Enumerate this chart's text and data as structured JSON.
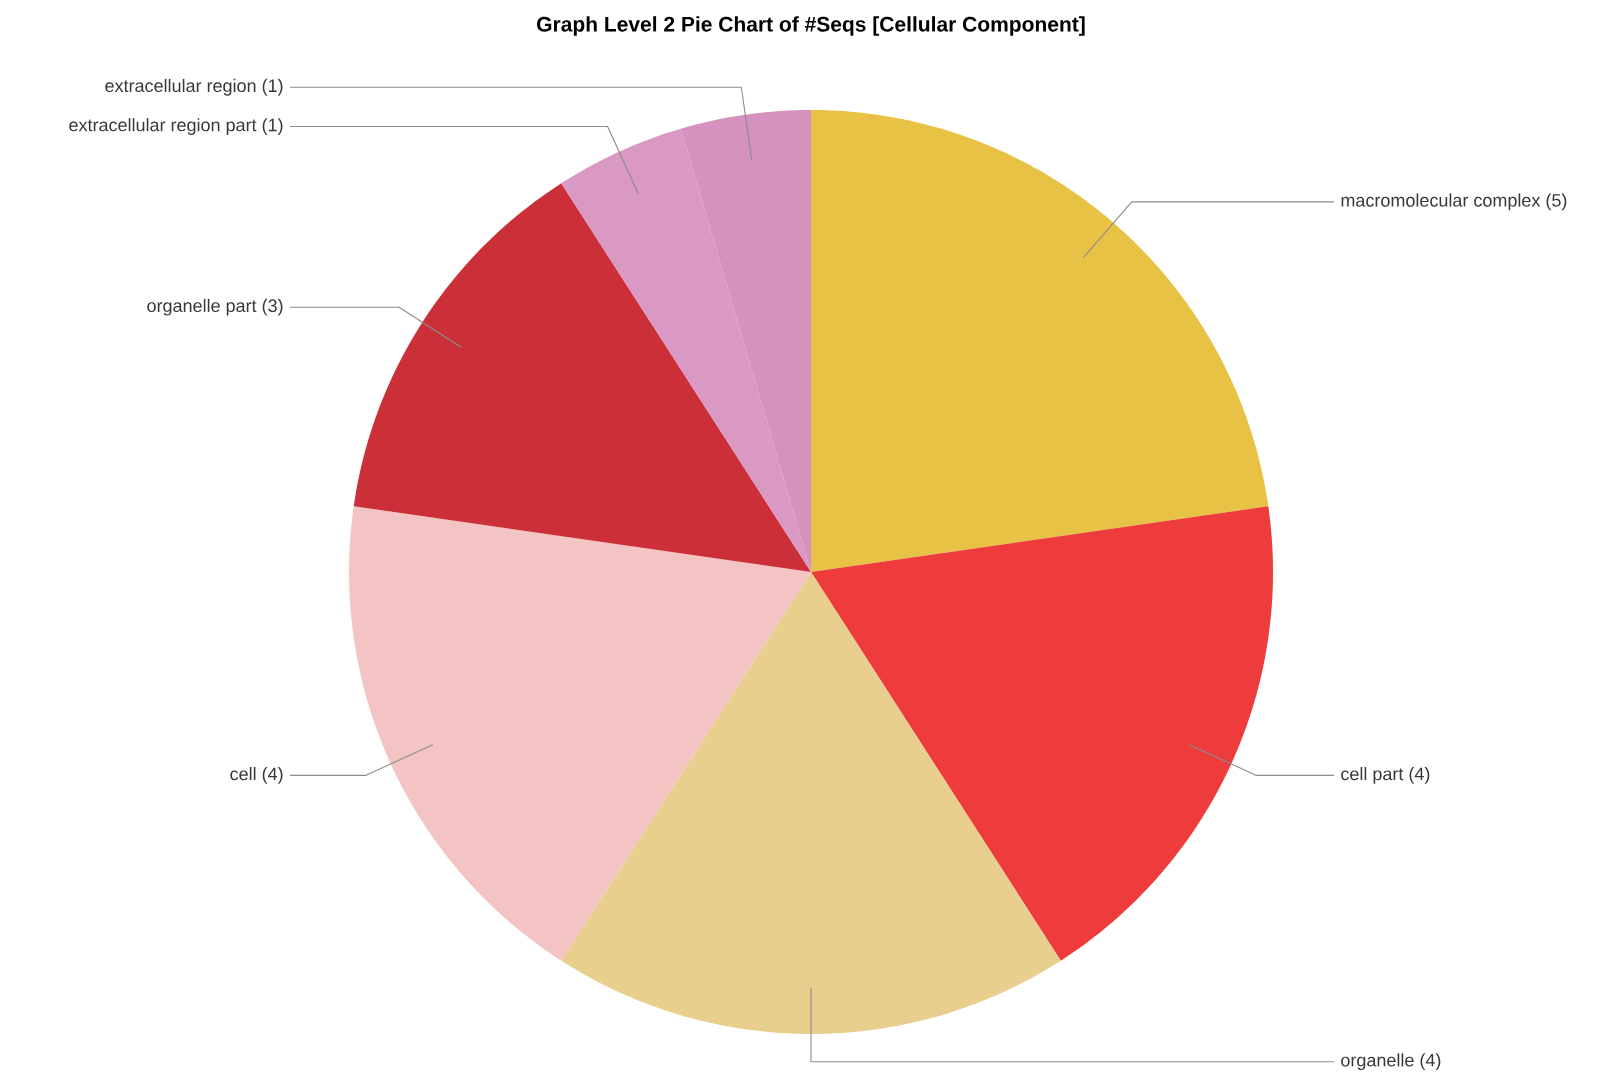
{
  "chart_data": {
    "type": "pie",
    "title": "Graph Level 2 Pie Chart of #Seqs [Cellular Component]",
    "categories": [
      "macromolecular complex (5)",
      "cell part (4)",
      "organelle (4)",
      "cell (4)",
      "organelle part (3)",
      "extracellular region part (1)",
      "extracellular region (1)"
    ],
    "values": [
      5,
      4,
      4,
      4,
      3,
      1,
      1
    ],
    "colors": [
      "#e8c245",
      "#ee3b3c",
      "#e8cf8e",
      "#f4c3c3",
      "#cb3038",
      "#d999c4",
      "#d592be"
    ]
  }
}
